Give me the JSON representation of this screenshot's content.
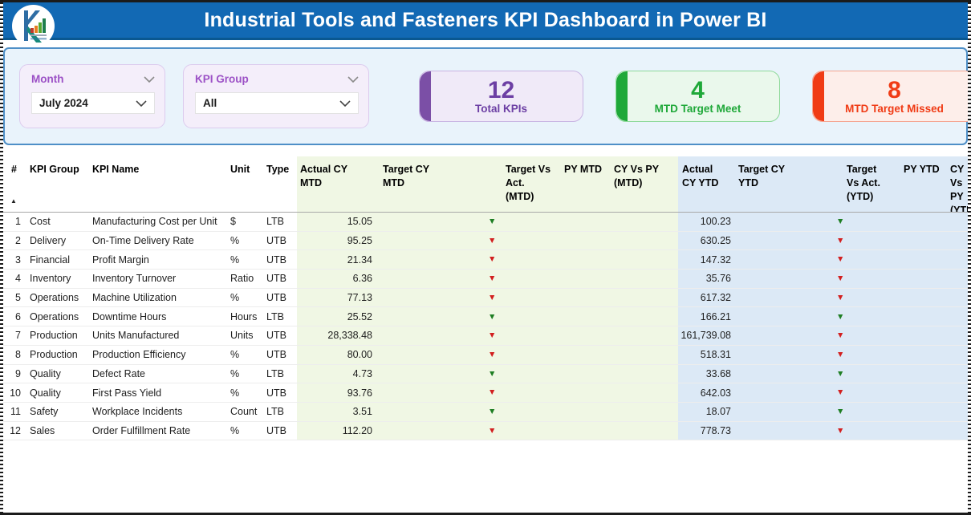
{
  "header": {
    "title": "Industrial Tools and Fasteners KPI Dashboard in Power BI"
  },
  "filters": {
    "month": {
      "label": "Month",
      "value": "July 2024"
    },
    "kpi_group": {
      "label": "KPI Group",
      "value": "All"
    }
  },
  "cards": [
    {
      "value": "12",
      "label": "Total KPIs",
      "accent": "#7B4FA6",
      "bg": "#F0EAF8",
      "border": "#C9B5E3",
      "text": "#6C3FA4"
    },
    {
      "value": "4",
      "label": "MTD Target Meet",
      "accent": "#1FA839",
      "bg": "#EAF8EC",
      "border": "#8ED99A",
      "text": "#1FA839"
    },
    {
      "value": "8",
      "label": "MTD Target Missed",
      "accent": "#F03B15",
      "bg": "#FDEEEA",
      "border": "#F5A491",
      "text": "#F03B15"
    }
  ],
  "colors": {
    "titlebar": "#1269B4",
    "titlebar_edge": "#0A5891",
    "panel_bg": "#E9F3FB",
    "panel_border": "#4E8FC7",
    "slicer_bg": "#F4EEFA",
    "slicer_label": "#9C51C6",
    "mtd_zone": "#F0F7E4",
    "ytd_zone": "#DCE9F6",
    "trend_meet": "#1E7E23",
    "trend_missed": "#D21F1F"
  },
  "table": {
    "sort_icon": "▲",
    "trend_icon": "▼",
    "columns": [
      "#",
      "KPI Group",
      "KPI Name",
      "Unit",
      "Type",
      "Actual CY\nMTD",
      "Target CY\nMTD",
      "Target Vs\nAct.\n(MTD)",
      "PY MTD",
      "CY Vs PY\n(MTD)",
      "Actual\nCY YTD",
      "Target CY\nYTD",
      "Target\nVs Act.\n(YTD)",
      "PY YTD",
      "CY Vs\nPY\n(YTD)"
    ],
    "rows": [
      {
        "num": "1",
        "group": "Cost",
        "name": "Manufacturing Cost per Unit",
        "unit": "$",
        "type": "LTB",
        "actual_cy_mtd": "15.05",
        "target_cy_mtd": "",
        "target_vs_act_mtd": "meet",
        "py_mtd": "",
        "cy_vs_py_mtd": "",
        "actual_cy_ytd": "100.23",
        "target_cy_ytd": "",
        "target_vs_act_ytd": "meet",
        "py_ytd": "",
        "cy_vs_py_ytd": ""
      },
      {
        "num": "2",
        "group": "Delivery",
        "name": "On-Time Delivery Rate",
        "unit": "%",
        "type": "UTB",
        "actual_cy_mtd": "95.25",
        "target_cy_mtd": "",
        "target_vs_act_mtd": "missed",
        "py_mtd": "",
        "cy_vs_py_mtd": "",
        "actual_cy_ytd": "630.25",
        "target_cy_ytd": "",
        "target_vs_act_ytd": "missed",
        "py_ytd": "",
        "cy_vs_py_ytd": ""
      },
      {
        "num": "3",
        "group": "Financial",
        "name": "Profit Margin",
        "unit": "%",
        "type": "UTB",
        "actual_cy_mtd": "21.34",
        "target_cy_mtd": "",
        "target_vs_act_mtd": "missed",
        "py_mtd": "",
        "cy_vs_py_mtd": "",
        "actual_cy_ytd": "147.32",
        "target_cy_ytd": "",
        "target_vs_act_ytd": "missed",
        "py_ytd": "",
        "cy_vs_py_ytd": ""
      },
      {
        "num": "4",
        "group": "Inventory",
        "name": "Inventory Turnover",
        "unit": "Ratio",
        "type": "UTB",
        "actual_cy_mtd": "6.36",
        "target_cy_mtd": "",
        "target_vs_act_mtd": "missed",
        "py_mtd": "",
        "cy_vs_py_mtd": "",
        "actual_cy_ytd": "35.76",
        "target_cy_ytd": "",
        "target_vs_act_ytd": "missed",
        "py_ytd": "",
        "cy_vs_py_ytd": ""
      },
      {
        "num": "5",
        "group": "Operations",
        "name": "Machine Utilization",
        "unit": "%",
        "type": "UTB",
        "actual_cy_mtd": "77.13",
        "target_cy_mtd": "",
        "target_vs_act_mtd": "missed",
        "py_mtd": "",
        "cy_vs_py_mtd": "",
        "actual_cy_ytd": "617.32",
        "target_cy_ytd": "",
        "target_vs_act_ytd": "missed",
        "py_ytd": "",
        "cy_vs_py_ytd": ""
      },
      {
        "num": "6",
        "group": "Operations",
        "name": "Downtime Hours",
        "unit": "Hours",
        "type": "LTB",
        "actual_cy_mtd": "25.52",
        "target_cy_mtd": "",
        "target_vs_act_mtd": "meet",
        "py_mtd": "",
        "cy_vs_py_mtd": "",
        "actual_cy_ytd": "166.21",
        "target_cy_ytd": "",
        "target_vs_act_ytd": "meet",
        "py_ytd": "",
        "cy_vs_py_ytd": ""
      },
      {
        "num": "7",
        "group": "Production",
        "name": "Units Manufactured",
        "unit": "Units",
        "type": "UTB",
        "actual_cy_mtd": "28,338.48",
        "target_cy_mtd": "",
        "target_vs_act_mtd": "missed",
        "py_mtd": "",
        "cy_vs_py_mtd": "",
        "actual_cy_ytd": "161,739.08",
        "target_cy_ytd": "",
        "target_vs_act_ytd": "missed",
        "py_ytd": "",
        "cy_vs_py_ytd": ""
      },
      {
        "num": "8",
        "group": "Production",
        "name": "Production Efficiency",
        "unit": "%",
        "type": "UTB",
        "actual_cy_mtd": "80.00",
        "target_cy_mtd": "",
        "target_vs_act_mtd": "missed",
        "py_mtd": "",
        "cy_vs_py_mtd": "",
        "actual_cy_ytd": "518.31",
        "target_cy_ytd": "",
        "target_vs_act_ytd": "missed",
        "py_ytd": "",
        "cy_vs_py_ytd": ""
      },
      {
        "num": "9",
        "group": "Quality",
        "name": "Defect Rate",
        "unit": "%",
        "type": "LTB",
        "actual_cy_mtd": "4.73",
        "target_cy_mtd": "",
        "target_vs_act_mtd": "meet",
        "py_mtd": "",
        "cy_vs_py_mtd": "",
        "actual_cy_ytd": "33.68",
        "target_cy_ytd": "",
        "target_vs_act_ytd": "meet",
        "py_ytd": "",
        "cy_vs_py_ytd": ""
      },
      {
        "num": "10",
        "group": "Quality",
        "name": "First Pass Yield",
        "unit": "%",
        "type": "UTB",
        "actual_cy_mtd": "93.76",
        "target_cy_mtd": "",
        "target_vs_act_mtd": "missed",
        "py_mtd": "",
        "cy_vs_py_mtd": "",
        "actual_cy_ytd": "642.03",
        "target_cy_ytd": "",
        "target_vs_act_ytd": "missed",
        "py_ytd": "",
        "cy_vs_py_ytd": ""
      },
      {
        "num": "11",
        "group": "Safety",
        "name": "Workplace Incidents",
        "unit": "Count",
        "type": "LTB",
        "actual_cy_mtd": "3.51",
        "target_cy_mtd": "",
        "target_vs_act_mtd": "meet",
        "py_mtd": "",
        "cy_vs_py_mtd": "",
        "actual_cy_ytd": "18.07",
        "target_cy_ytd": "",
        "target_vs_act_ytd": "meet",
        "py_ytd": "",
        "cy_vs_py_ytd": ""
      },
      {
        "num": "12",
        "group": "Sales",
        "name": "Order Fulfillment Rate",
        "unit": "%",
        "type": "UTB",
        "actual_cy_mtd": "112.20",
        "target_cy_mtd": "",
        "target_vs_act_mtd": "missed",
        "py_mtd": "",
        "cy_vs_py_mtd": "",
        "actual_cy_ytd": "778.73",
        "target_cy_ytd": "",
        "target_vs_act_ytd": "missed",
        "py_ytd": "",
        "cy_vs_py_ytd": ""
      }
    ]
  }
}
